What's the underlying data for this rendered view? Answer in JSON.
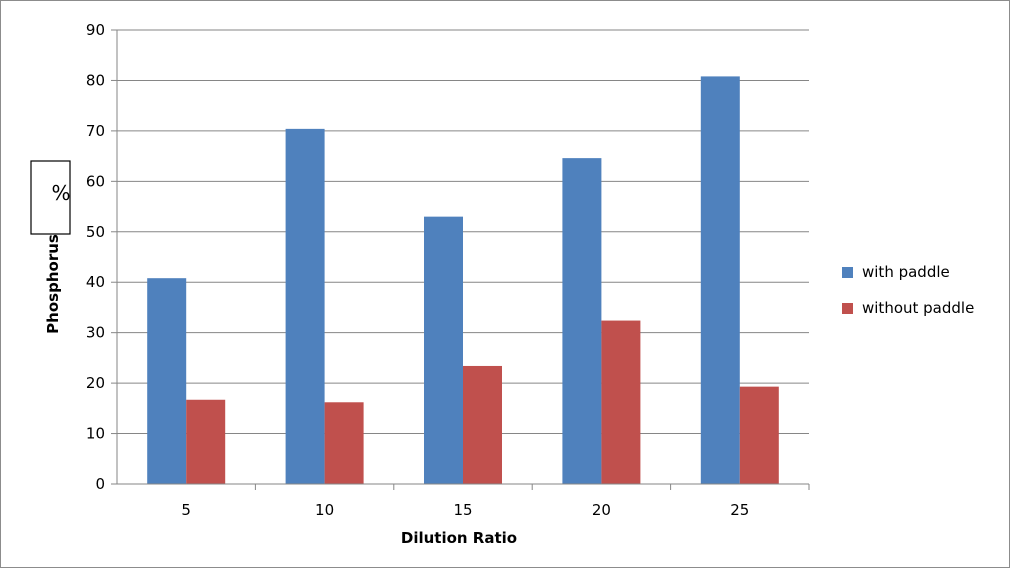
{
  "chart_data": {
    "type": "bar",
    "categories": [
      "5",
      "10",
      "15",
      "20",
      "25"
    ],
    "series": [
      {
        "name": "with paddle",
        "values": [
          40.8,
          70.4,
          53.0,
          64.6,
          80.8
        ],
        "color": "#4f81bd"
      },
      {
        "name": "without paddle",
        "values": [
          16.7,
          16.2,
          23.4,
          32.4,
          19.3
        ],
        "color": "#c0504d"
      }
    ],
    "xlabel": "Dilution Ratio",
    "ylabel": "Phosphorus",
    "unit_label": "%",
    "ylim": [
      0,
      90
    ],
    "yticks": [
      "0",
      "10",
      "20",
      "30",
      "40",
      "50",
      "60",
      "70",
      "80",
      "90"
    ],
    "grid": true,
    "legend_position": "right"
  }
}
